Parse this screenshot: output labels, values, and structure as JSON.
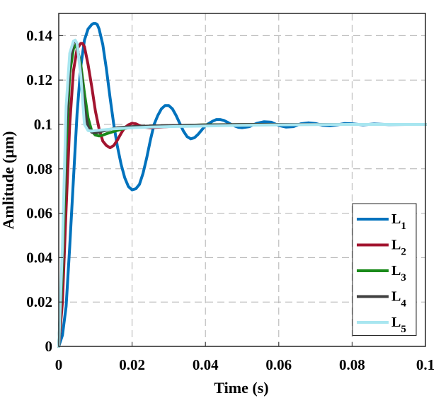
{
  "chart_data": {
    "type": "line",
    "xlabel": "Time (s)",
    "ylabel": "Amlitude (μm)",
    "xlim": [
      0,
      0.1
    ],
    "ylim": [
      0,
      0.15
    ],
    "xticks": [
      "0",
      "0.02",
      "0.04",
      "0.06",
      "0.08",
      "0.1"
    ],
    "yticks": [
      "0",
      "0.02",
      "0.04",
      "0.06",
      "0.08",
      "0.1",
      "0.12",
      "0.14"
    ],
    "grid": true,
    "legend_position": "bottom-right",
    "series": [
      {
        "name": "L",
        "subscript": "1",
        "color": "#0072BD",
        "x": [
          0,
          0.001,
          0.002,
          0.003,
          0.004,
          0.005,
          0.006,
          0.007,
          0.008,
          0.009,
          0.0095,
          0.01,
          0.0105,
          0.011,
          0.012,
          0.013,
          0.014,
          0.015,
          0.016,
          0.017,
          0.018,
          0.019,
          0.02,
          0.021,
          0.022,
          0.023,
          0.024,
          0.025,
          0.026,
          0.027,
          0.028,
          0.029,
          0.03,
          0.031,
          0.032,
          0.033,
          0.034,
          0.035,
          0.036,
          0.037,
          0.038,
          0.039,
          0.04,
          0.041,
          0.042,
          0.043,
          0.044,
          0.045,
          0.046,
          0.047,
          0.048,
          0.049,
          0.05,
          0.052,
          0.054,
          0.056,
          0.058,
          0.06,
          0.062,
          0.064,
          0.066,
          0.068,
          0.07,
          0.072,
          0.074,
          0.076,
          0.078,
          0.08,
          0.083,
          0.086,
          0.09,
          0.095,
          0.1
        ],
        "y": [
          0,
          0.005,
          0.018,
          0.045,
          0.075,
          0.105,
          0.126,
          0.138,
          0.143,
          0.145,
          0.1455,
          0.1455,
          0.145,
          0.143,
          0.136,
          0.125,
          0.112,
          0.1,
          0.09,
          0.082,
          0.076,
          0.072,
          0.0705,
          0.071,
          0.073,
          0.078,
          0.085,
          0.093,
          0.1,
          0.104,
          0.107,
          0.1085,
          0.1085,
          0.107,
          0.104,
          0.1005,
          0.097,
          0.0945,
          0.0935,
          0.094,
          0.0955,
          0.0975,
          0.0995,
          0.1005,
          0.1015,
          0.1022,
          0.1022,
          0.1018,
          0.101,
          0.1,
          0.0993,
          0.0987,
          0.0985,
          0.099,
          0.1005,
          0.1012,
          0.101,
          0.0995,
          0.0988,
          0.099,
          0.1003,
          0.1007,
          0.1004,
          0.0996,
          0.0994,
          0.0998,
          0.1004,
          0.1003,
          0.0998,
          0.1002,
          0.0999,
          0.1,
          0.1
        ]
      },
      {
        "name": "L",
        "subscript": "2",
        "color": "#A2142F",
        "x": [
          0,
          0.001,
          0.002,
          0.003,
          0.004,
          0.005,
          0.006,
          0.0065,
          0.007,
          0.008,
          0.009,
          0.01,
          0.011,
          0.012,
          0.013,
          0.014,
          0.015,
          0.016,
          0.017,
          0.018,
          0.019,
          0.02,
          0.021,
          0.022,
          0.023,
          0.025,
          0.028,
          0.032,
          0.036,
          0.04,
          0.05,
          0.06,
          0.07,
          0.08,
          0.09,
          0.1
        ],
        "y": [
          0,
          0.02,
          0.062,
          0.1,
          0.124,
          0.134,
          0.1365,
          0.1365,
          0.135,
          0.127,
          0.117,
          0.106,
          0.098,
          0.0925,
          0.0905,
          0.0895,
          0.0905,
          0.093,
          0.096,
          0.0985,
          0.0998,
          0.1005,
          0.1003,
          0.0995,
          0.0988,
          0.0985,
          0.0988,
          0.0993,
          0.0996,
          0.0998,
          0.0999,
          0.1,
          0.1,
          0.1,
          0.1,
          0.1
        ]
      },
      {
        "name": "L",
        "subscript": "3",
        "color": "#1A8A1A",
        "x": [
          0,
          0.001,
          0.002,
          0.003,
          0.004,
          0.0045,
          0.005,
          0.006,
          0.007,
          0.008,
          0.009,
          0.01,
          0.011,
          0.012,
          0.013,
          0.015,
          0.017,
          0.019,
          0.022,
          0.025,
          0.03,
          0.035,
          0.04,
          0.05,
          0.06,
          0.07,
          0.08,
          0.09,
          0.1
        ],
        "y": [
          0,
          0.035,
          0.09,
          0.123,
          0.134,
          0.1355,
          0.1345,
          0.127,
          0.114,
          0.103,
          0.097,
          0.0952,
          0.0948,
          0.0952,
          0.0958,
          0.0968,
          0.0978,
          0.0985,
          0.099,
          0.0991,
          0.0993,
          0.0996,
          0.0998,
          0.0999,
          0.1,
          0.1,
          0.1,
          0.1,
          0.1
        ]
      },
      {
        "name": "L",
        "subscript": "4",
        "color": "#404040",
        "x": [
          0,
          0.001,
          0.002,
          0.003,
          0.004,
          0.0045,
          0.005,
          0.006,
          0.007,
          0.008,
          0.009,
          0.01,
          0.011,
          0.012,
          0.014,
          0.016,
          0.02,
          0.025,
          0.03,
          0.04,
          0.05,
          0.06,
          0.07,
          0.08,
          0.09,
          0.1
        ],
        "y": [
          0,
          0.04,
          0.1,
          0.128,
          0.137,
          0.1375,
          0.136,
          0.124,
          0.107,
          0.099,
          0.0965,
          0.0962,
          0.0965,
          0.097,
          0.0978,
          0.0985,
          0.099,
          0.0993,
          0.0995,
          0.0997,
          0.0999,
          0.1,
          0.1,
          0.1,
          0.1,
          0.1
        ]
      },
      {
        "name": "L",
        "subscript": "5",
        "color": "#A8E6F0",
        "x": [
          0,
          0.001,
          0.002,
          0.003,
          0.004,
          0.0045,
          0.005,
          0.006,
          0.007,
          0.008,
          0.009,
          0.01,
          0.012,
          0.015,
          0.02,
          0.025,
          0.03,
          0.04,
          0.05,
          0.06,
          0.07,
          0.08,
          0.09,
          0.1
        ],
        "y": [
          0,
          0.045,
          0.108,
          0.132,
          0.1375,
          0.138,
          0.1365,
          0.122,
          0.1,
          0.0972,
          0.097,
          0.0972,
          0.0975,
          0.098,
          0.0985,
          0.0988,
          0.099,
          0.0993,
          0.0996,
          0.0998,
          0.0999,
          0.1,
          0.1,
          0.1
        ]
      }
    ]
  }
}
